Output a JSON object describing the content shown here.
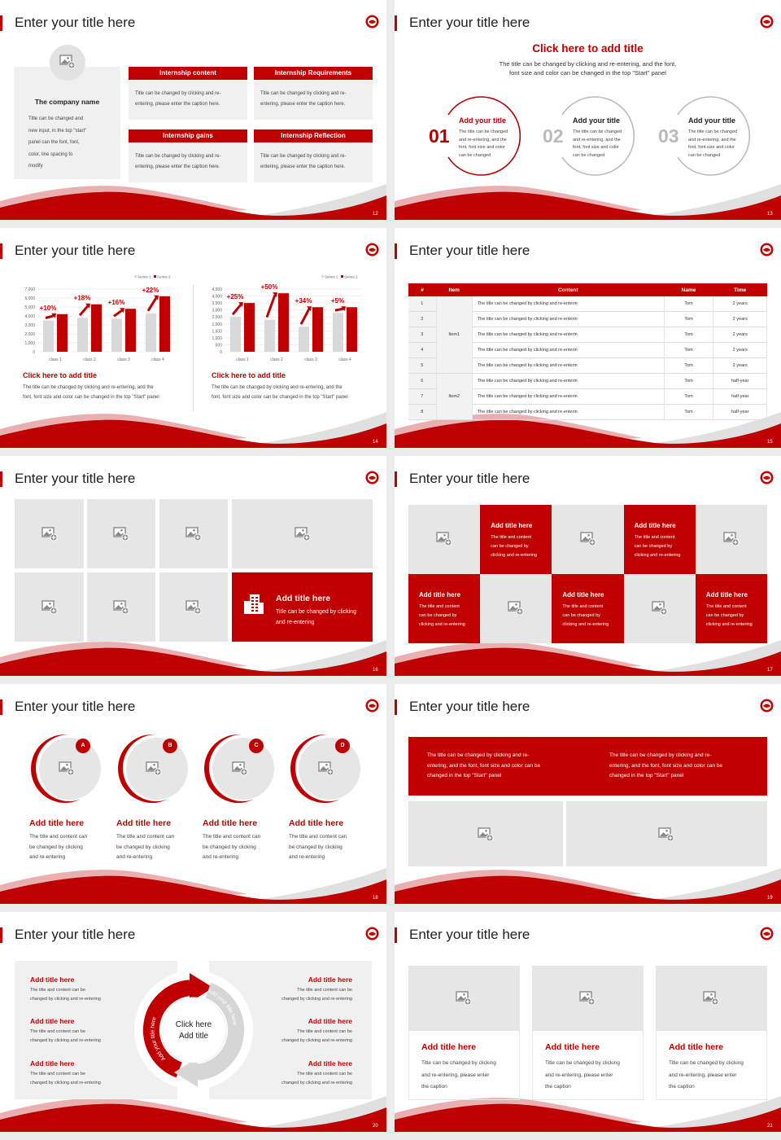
{
  "accent": "#c00000",
  "slides": [
    {
      "number": "12",
      "title": "Enter your title here",
      "company": {
        "name": "The company name",
        "text": [
          "Title can be changed and",
          "new input, in the top \"start\"",
          "panel can the font, font,",
          "color, line spacing to",
          "modify"
        ]
      },
      "boxes": [
        {
          "heading": "Internship content",
          "text": [
            "Title can be changed by clicking and re-",
            "entering, please enter the caption here."
          ]
        },
        {
          "heading": "Internship Requirements",
          "text": [
            "Title can be changed by clicking and re-",
            "entering, please enter the caption here."
          ]
        },
        {
          "heading": "Internship gains",
          "text": [
            "Title can be changed by clicking and re-",
            "entering, please enter the caption here."
          ]
        },
        {
          "heading": "Internship Reflection",
          "text": [
            "Title can be changed by clicking and re-",
            "entering, please enter the caption here."
          ]
        }
      ]
    },
    {
      "number": "13",
      "title": "Enter your title here",
      "heading": "Click here to add title",
      "subtitle": [
        "The title can be changed by clicking and re-entering, and the font,",
        "font size and color can be changed in the top \"Start\" panel"
      ],
      "items": [
        {
          "num": "01",
          "title": "Add your title",
          "text": [
            "The title can be changed",
            "and re-entering, and the",
            "font, font size and color",
            "can be changed"
          ]
        },
        {
          "num": "02",
          "title": "Add your title",
          "text": [
            "The title can be changed",
            "and re-entering, and the",
            "font, font size and color",
            "can be changed"
          ]
        },
        {
          "num": "03",
          "title": "Add your title",
          "text": [
            "The title can be changed",
            "and re-entering, and the",
            "font, font size and color",
            "can be changed"
          ]
        }
      ]
    },
    {
      "number": "14",
      "title": "Enter your title here",
      "captions": [
        {
          "title": "Click here to add title",
          "text": [
            "The title can be changed by clicking and re-entering, and the",
            "font, font size and color can be changed in the top \"Start\" panel"
          ]
        },
        {
          "title": "Click here to add title",
          "text": [
            "The title can be changed by clicking and re-entering, and the",
            "font, font size and color can be changed in the top \"Start\" panel"
          ]
        }
      ]
    },
    {
      "number": "15",
      "title": "Enter your title here",
      "table": {
        "headers": [
          "#",
          "Item",
          "Content",
          "Name",
          "Time"
        ],
        "rows": [
          {
            "n": "1",
            "item": "Item1",
            "content": "The title can be changed by clicking and re-enterin",
            "name": "Tom",
            "time": "2 years"
          },
          {
            "n": "2",
            "item": "",
            "content": "The title can be changed by clicking and re-enterin",
            "name": "Tom",
            "time": "2 years"
          },
          {
            "n": "3",
            "item": "",
            "content": "The title can be changed by clicking and re-enterin",
            "name": "Tom",
            "time": "2 years"
          },
          {
            "n": "4",
            "item": "",
            "content": "The title can be changed by clicking and re-enterin",
            "name": "Tom",
            "time": "2 years"
          },
          {
            "n": "5",
            "item": "",
            "content": "The title can be changed by clicking and re-enterin",
            "name": "Tom",
            "time": "2 years"
          },
          {
            "n": "6",
            "item": "Item2",
            "content": "The title can be changed by clicking and re-enterin",
            "name": "Tom",
            "time": "half-year"
          },
          {
            "n": "7",
            "item": "",
            "content": "The title can be changed by clicking and re-enterin",
            "name": "Tom",
            "time": "half-year"
          },
          {
            "n": "8",
            "item": "",
            "content": "The title can be changed by clicking and re-enterin",
            "name": "Tom",
            "time": "half-year"
          }
        ]
      }
    },
    {
      "number": "16",
      "title": "Enter your title here",
      "feature": {
        "icon": "building-icon",
        "title": "Add title here",
        "text": [
          "Title can be changed by clicking",
          "and re-entering"
        ]
      }
    },
    {
      "number": "17",
      "title": "Enter your title here",
      "cells": [
        {
          "title": "Add title here",
          "text": [
            "The title and content",
            "can be changed by",
            "clicking and re-entering"
          ]
        },
        {
          "title": "Add title here",
          "text": [
            "The title and content",
            "can be changed by",
            "clicking and re-entering"
          ]
        },
        {
          "title": "Add title here",
          "text": [
            "The title and content",
            "can be changed by",
            "clicking and re-entering"
          ]
        },
        {
          "title": "Add title here",
          "text": [
            "The title and content",
            "can be changed by",
            "clicking and re-entering"
          ]
        },
        {
          "title": "Add title here",
          "text": [
            "The title and content",
            "can be changed by",
            "clicking and re-entering"
          ]
        }
      ]
    },
    {
      "number": "18",
      "title": "Enter your title here",
      "items": [
        {
          "badge": "A",
          "title": "Add title here",
          "text": [
            "The title and content can",
            "be changed by clicking",
            "and re-entering"
          ]
        },
        {
          "badge": "B",
          "title": "Add title here",
          "text": [
            "The title and content can",
            "be changed by clicking",
            "and re-entering"
          ]
        },
        {
          "badge": "C",
          "title": "Add title here",
          "text": [
            "The title and content can",
            "be changed by clicking",
            "and re-entering"
          ]
        },
        {
          "badge": "D",
          "title": "Add title here",
          "text": [
            "The title and content can",
            "be changed by clicking",
            "and re-entering"
          ]
        }
      ]
    },
    {
      "number": "19",
      "title": "Enter your title here",
      "texts": [
        [
          "The title can be changed by clicking and re-",
          "entering, and the font, font size and color can be",
          "changed in the top \"Start\" panel"
        ],
        [
          "The title can be changed by clicking and re-",
          "entering, and the font, font size and color can be",
          "changed in the top \"Start\" panel"
        ]
      ]
    },
    {
      "number": "20",
      "title": "Enter your title here",
      "left": [
        {
          "title": "Add title here",
          "text": [
            "The title and content can be",
            "changed by clicking and re-entering"
          ]
        },
        {
          "title": "Add title here",
          "text": [
            "The title and content can be",
            "changed by clicking and re-entering"
          ]
        },
        {
          "title": "Add title here",
          "text": [
            "The title and content can be",
            "changed by clicking and re-entering"
          ]
        }
      ],
      "right": [
        {
          "title": "Add title here",
          "text": [
            "The title and content can be",
            "changed by clicking and re-entering"
          ]
        },
        {
          "title": "Add title here",
          "text": [
            "The title and content can be",
            "changed by clicking and re-entering"
          ]
        },
        {
          "title": "Add title here",
          "text": [
            "The title and content can be",
            "changed by clicking and re-entering"
          ]
        }
      ],
      "center": [
        "Click here",
        "Add title"
      ],
      "arcs": [
        "Add your title here",
        "Add your title here"
      ]
    },
    {
      "number": "21",
      "title": "Enter your title here",
      "cards": [
        {
          "title": "Add title here",
          "text": [
            "Title can be changed by clicking",
            "and re-entering, please enter",
            "the caption"
          ]
        },
        {
          "title": "Add title here",
          "text": [
            "Title can be changed by clicking",
            "and re-entering, please enter",
            "the caption"
          ]
        },
        {
          "title": "Add title here",
          "text": [
            "Title can be changed by clicking",
            "and re-entering, please enter",
            "the caption"
          ]
        }
      ]
    }
  ],
  "chart_data": [
    {
      "type": "bar",
      "categories": [
        "class 1",
        "class 2",
        "class 3",
        "class 4"
      ],
      "series": [
        {
          "name": "Series 1",
          "values": [
            3500,
            3800,
            3700,
            4300
          ],
          "color": "#d9d9d9"
        },
        {
          "name": "Series 2",
          "values": [
            4200,
            5300,
            4800,
            6200
          ],
          "color": "#c00000"
        }
      ],
      "annotations": [
        "+10%",
        "+18%",
        "+16%",
        "+22%"
      ],
      "ylim": [
        0,
        7000
      ],
      "yticks": [
        "0",
        "1,000",
        "2,000",
        "3,000",
        "4,000",
        "5,000",
        "6,000",
        "7,000"
      ],
      "grid": true,
      "legend": "top-right"
    },
    {
      "type": "bar",
      "categories": [
        "class 1",
        "class 2",
        "class 3",
        "class 4"
      ],
      "series": [
        {
          "name": "Series 1",
          "values": [
            2500,
            2300,
            1800,
            2800
          ],
          "color": "#d9d9d9"
        },
        {
          "name": "Series 2",
          "values": [
            3500,
            4200,
            3200,
            3200
          ],
          "color": "#c00000"
        }
      ],
      "annotations": [
        "+25%",
        "+50%",
        "+34%",
        "+5%"
      ],
      "ylim": [
        0,
        4500
      ],
      "yticks": [
        "0",
        "500",
        "1,000",
        "1,500",
        "2,000",
        "2,500",
        "3,000",
        "3,500",
        "4,000",
        "4,500"
      ],
      "grid": true,
      "legend": "top-right"
    }
  ]
}
